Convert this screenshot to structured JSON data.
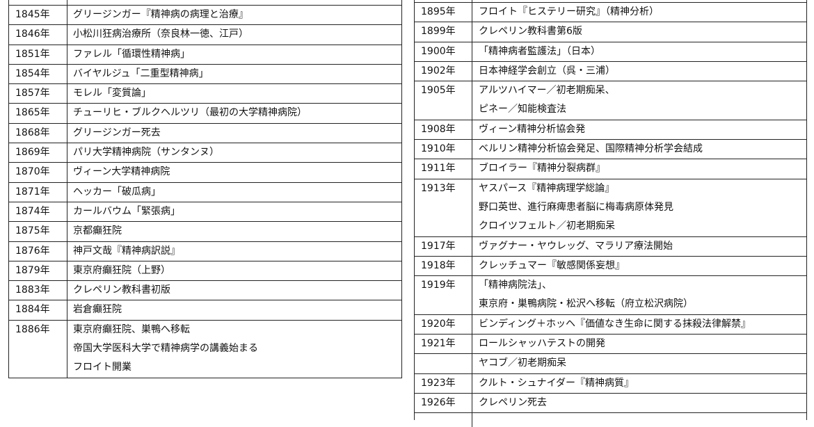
{
  "left_table": {
    "rows": [
      {
        "year": "1845年",
        "events": [
          "グリージンガー『精神病の病理と治療』"
        ]
      },
      {
        "year": "1846年",
        "events": [
          "小松川狂病治療所（奈良林一徳、江戸）"
        ]
      },
      {
        "year": "1851年",
        "events": [
          "ファレル「循環性精神病」"
        ]
      },
      {
        "year": "1854年",
        "events": [
          "バイヤルジュ「二重型精神病」"
        ]
      },
      {
        "year": "1857年",
        "events": [
          "モレル「変質論」"
        ]
      },
      {
        "year": "1865年",
        "events": [
          "チューリヒ・ブルクヘルツリ（最初の大学精神病院）"
        ]
      },
      {
        "year": "1868年",
        "events": [
          "グリージンガー死去"
        ]
      },
      {
        "year": "1869年",
        "events": [
          "パリ大学精神病院（サンタンヌ）"
        ]
      },
      {
        "year": "1870年",
        "events": [
          "ヴィーン大学精神病院"
        ]
      },
      {
        "year": "1871年",
        "events": [
          "ヘッカー「破瓜病」"
        ]
      },
      {
        "year": "1874年",
        "events": [
          "カールバウム「緊張病」"
        ]
      },
      {
        "year": "1875年",
        "events": [
          "京都癲狂院"
        ]
      },
      {
        "year": "1876年",
        "events": [
          "神戸文哉『精神病訳説』"
        ]
      },
      {
        "year": "1879年",
        "events": [
          "東京府癲狂院（上野）"
        ]
      },
      {
        "year": "1883年",
        "events": [
          "クレペリン教科書初版"
        ]
      },
      {
        "year": "1884年",
        "events": [
          "岩倉癲狂院"
        ]
      },
      {
        "year": "1886年",
        "events": [
          "東京府癲狂院、巣鴨へ移転",
          "帝国大学医科大学で精神病学の講義始まる",
          "フロイト開業"
        ]
      }
    ]
  },
  "right_table": {
    "rows": [
      {
        "year": "1895年",
        "events": [
          "フロイト『ヒステリー研究』（精神分析）"
        ]
      },
      {
        "year": "1899年",
        "events": [
          "クレペリン教科書第6版"
        ]
      },
      {
        "year": "1900年",
        "events": [
          "「精神病者監護法」（日本）"
        ]
      },
      {
        "year": "1902年",
        "events": [
          "日本神経学会創立（呉・三浦）"
        ]
      },
      {
        "year": "1905年",
        "events": [
          "アルツハイマー／初老期痴呆、",
          "ピネー／知能検査法"
        ]
      },
      {
        "year": "1908年",
        "events": [
          "ヴィーン精神分析協会発"
        ]
      },
      {
        "year": "1910年",
        "events": [
          "ベルリン精神分析協会発足、国際精神分析学会結成"
        ]
      },
      {
        "year": "1911年",
        "events": [
          "ブロイラー『精神分裂病群』"
        ]
      },
      {
        "year": "1913年",
        "events": [
          "ヤスパース『精神病理学総論』",
          "野口英世、進行麻痺患者脳に梅毒病原体発見",
          "クロイツフェルト／初老期痴呆"
        ]
      },
      {
        "year": "1917年",
        "events": [
          "ヴァグナー・ヤウレッグ、マラリア療法開始"
        ]
      },
      {
        "year": "1918年",
        "events": [
          "クレッチュマー『敏感関係妄想』"
        ]
      },
      {
        "year": "1919年",
        "events": [
          "「精神病院法」、",
          "東京府・巣鴨病院・松沢へ移転（府立松沢病院）"
        ]
      },
      {
        "year": "1920年",
        "events": [
          "ビンディング＋ホッヘ『価値なき生命に関する抹殺法律解禁』"
        ]
      },
      {
        "year": "1921年",
        "events": [
          "ロールシャッハテストの開発"
        ]
      },
      {
        "year": "",
        "events": [
          "ヤコブ／初老期痴呆"
        ]
      },
      {
        "year": "1923年",
        "events": [
          "クルト・シュナイダー『精神病質』"
        ]
      },
      {
        "year": "1926年",
        "events": [
          "クレペリン死去"
        ]
      }
    ]
  }
}
